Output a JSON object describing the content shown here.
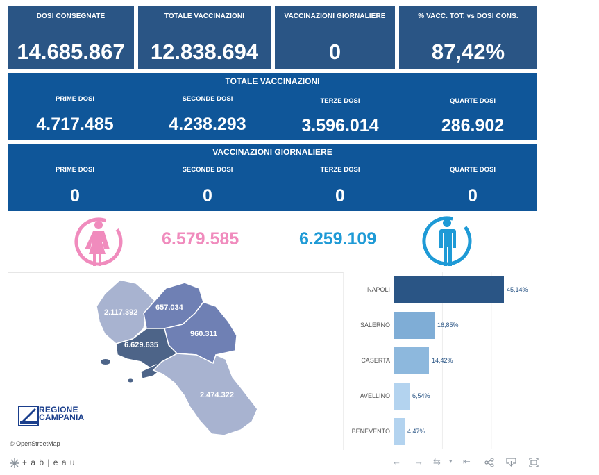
{
  "kpis": [
    {
      "label": "DOSI  CONSEGNATE",
      "value": "14.685.867"
    },
    {
      "label": "TOTALE VACCINAZIONI",
      "value": "12.838.694"
    },
    {
      "label": "VACCINAZIONI GIORNALIERE",
      "value": "0"
    },
    {
      "label": "% VACC. TOT. vs DOSI CONS.",
      "value": "87,42%"
    }
  ],
  "totale": {
    "title": "TOTALE VACCINAZIONI",
    "items": [
      {
        "label": "PRIME DOSI",
        "value": "4.717.485"
      },
      {
        "label": "SECONDE DOSI",
        "value": "4.238.293"
      },
      {
        "label": "TERZE DOSI",
        "value": "3.596.014"
      },
      {
        "label": "QUARTE DOSI",
        "value": "286.902"
      }
    ]
  },
  "giornaliere": {
    "title": "VACCINAZIONI GIORNALIERE",
    "items": [
      {
        "label": "PRIME DOSI",
        "value": "0"
      },
      {
        "label": "SECONDE DOSI",
        "value": "0"
      },
      {
        "label": "TERZE DOSI",
        "value": "0"
      },
      {
        "label": "QUARTE DOSI",
        "value": "0"
      }
    ]
  },
  "gender": {
    "female_count": "6.579.585",
    "male_count": "6.259.109",
    "female_color": "#f08bbd",
    "male_color": "#1e9ad6"
  },
  "map": {
    "province_values": {
      "caserta": "2.117.392",
      "benevento": "657.034",
      "avellino": "960.311",
      "napoli": "6.629.635",
      "salerno": "2.474.322"
    },
    "logo_line1": "REGIONE",
    "logo_line2": "CAMPANIA",
    "attribution": "© OpenStreetMap"
  },
  "chart_data": {
    "type": "bar",
    "orientation": "horizontal",
    "categories": [
      "NAPOLI",
      "SALERNO",
      "CASERTA",
      "AVELLINO",
      "BENEVENTO"
    ],
    "values": [
      45.14,
      16.85,
      14.42,
      6.54,
      4.47
    ],
    "value_labels": [
      "45,14%",
      "16,85%",
      "14,42%",
      "6,54%",
      "4,47%"
    ],
    "colors": [
      "#2a5585",
      "#7fadd6",
      "#8db8dd",
      "#b3d3ef",
      "#b3d3ef"
    ],
    "xlim": [
      0,
      50
    ],
    "grid": true
  },
  "footer": {
    "brand": "+ a b | e a u"
  },
  "colors": {
    "kpi_bg": "#2a5585",
    "band_bg": "#0f5699"
  }
}
